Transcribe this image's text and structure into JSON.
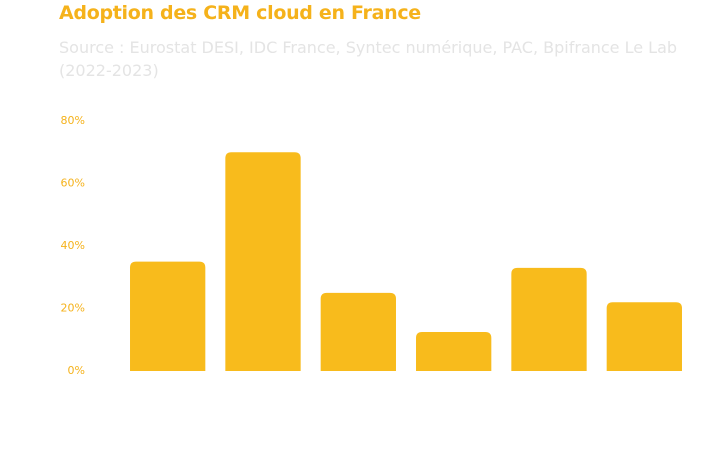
{
  "chart_data": {
    "type": "bar",
    "title": "Adoption des CRM cloud en France",
    "subtitle": "Source : Eurostat DESI, IDC France, Syntec numérique, PAC, Bpifrance Le Lab (2022-2023)",
    "categories": [
      null,
      null,
      null,
      null,
      null,
      null
    ],
    "values": [
      35,
      70,
      25,
      12.5,
      33,
      22
    ],
    "color": "#f8bb1c",
    "ylim": [
      0,
      80
    ],
    "yticks": [
      {
        "value": 0,
        "label": "0%"
      },
      {
        "value": 20,
        "label": "20%"
      },
      {
        "value": 40,
        "label": "40%"
      },
      {
        "value": 60,
        "label": "60%"
      },
      {
        "value": 80,
        "label": "80%"
      }
    ],
    "grid": false
  }
}
